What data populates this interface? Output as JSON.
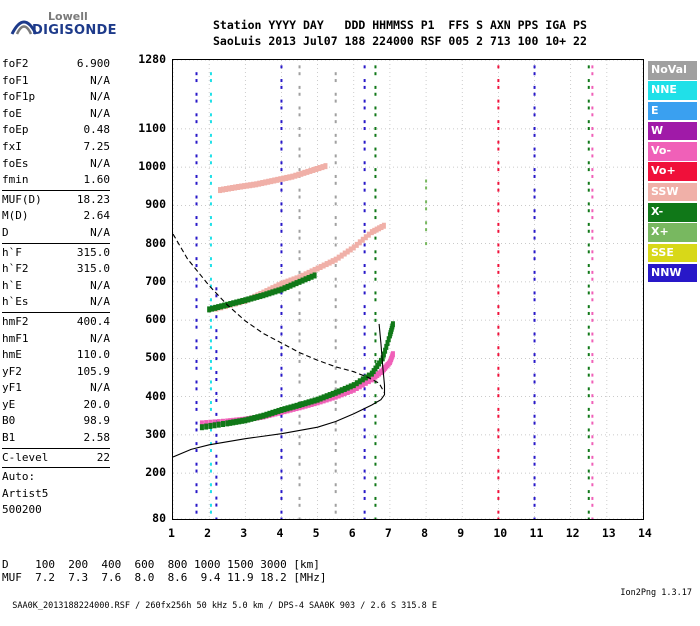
{
  "logo": {
    "line1": "Lowell",
    "line2": "DIGISONDE",
    "icon": "lowell-digisonde-logo-icon"
  },
  "header": {
    "line1": "Station YYYY DAY   DDD HHMMSS P1  FFS S AXN PPS IGA PS",
    "line2": "SaoLuis 2013 Jul07 188 224000 RSF 005 2 713 100 10+ 22"
  },
  "params": {
    "group1": [
      {
        "label": "foF2",
        "value": "6.900"
      },
      {
        "label": "foF1",
        "value": "N/A"
      },
      {
        "label": "foF1p",
        "value": "N/A"
      },
      {
        "label": "foE",
        "value": "N/A"
      },
      {
        "label": "foEp",
        "value": "0.48"
      },
      {
        "label": "fxI",
        "value": "7.25"
      },
      {
        "label": "foEs",
        "value": "N/A"
      },
      {
        "label": "fmin",
        "value": "1.60"
      }
    ],
    "group2": [
      {
        "label": "MUF(D)",
        "value": "18.23"
      },
      {
        "label": "M(D)",
        "value": "2.64"
      },
      {
        "label": "D",
        "value": "N/A"
      }
    ],
    "group3": [
      {
        "label": "h`F",
        "value": "315.0"
      },
      {
        "label": "h`F2",
        "value": "315.0"
      },
      {
        "label": "h`E",
        "value": "N/A"
      },
      {
        "label": "h`Es",
        "value": "N/A"
      }
    ],
    "group4": [
      {
        "label": "hmF2",
        "value": "400.4"
      },
      {
        "label": "hmF1",
        "value": "N/A"
      },
      {
        "label": "hmE",
        "value": "110.0"
      },
      {
        "label": "yF2",
        "value": "105.9"
      },
      {
        "label": "yF1",
        "value": "N/A"
      },
      {
        "label": "yE",
        "value": "20.0"
      },
      {
        "label": "B0",
        "value": "98.9"
      },
      {
        "label": "B1",
        "value": "2.58"
      }
    ],
    "group5": [
      {
        "label": "C-level",
        "value": "22"
      }
    ],
    "auto_lines": [
      "Auto:",
      "Artist5",
      "500200"
    ]
  },
  "legend": [
    {
      "label": "NoVal",
      "color": "#a0a0a0"
    },
    {
      "label": "NNE",
      "color": "#20e0e8"
    },
    {
      "label": "E",
      "color": "#3aa0f0"
    },
    {
      "label": "W",
      "color": "#a01aa8"
    },
    {
      "label": "Vo-",
      "color": "#f060b8"
    },
    {
      "label": "Vo+",
      "color": "#f0103a"
    },
    {
      "label": "SSW",
      "color": "#f0b0a8"
    },
    {
      "label": "X-",
      "color": "#107818"
    },
    {
      "label": "X+",
      "color": "#78b860"
    },
    {
      "label": "SSE",
      "color": "#d8d818"
    },
    {
      "label": "NNW",
      "color": "#2818c8"
    }
  ],
  "chart_data": {
    "type": "scatter",
    "title": "",
    "xlabel": "",
    "ylabel": "",
    "xlim": [
      1,
      14
    ],
    "ylim": [
      80,
      1280
    ],
    "x_ticks": [
      "1",
      "2",
      "3",
      "4",
      "5",
      "6",
      "7",
      "8",
      "9",
      "10",
      "11",
      "12",
      "13",
      "14"
    ],
    "y_ticks": [
      "80",
      "200",
      "300",
      "400",
      "500",
      "600",
      "700",
      "800",
      "900",
      "1000",
      "1100",
      "1280"
    ],
    "y_tick_values": [
      80,
      200,
      300,
      400,
      500,
      600,
      700,
      800,
      900,
      1000,
      1100,
      1280
    ],
    "grid": true,
    "series": [
      {
        "type": "trace",
        "color": "#f060b8",
        "points": [
          [
            1.8,
            330
          ],
          [
            2.5,
            335
          ],
          [
            3.0,
            340
          ],
          [
            3.5,
            348
          ],
          [
            4.0,
            360
          ],
          [
            4.5,
            372
          ],
          [
            5.0,
            385
          ],
          [
            5.5,
            400
          ],
          [
            6.0,
            418
          ],
          [
            6.5,
            445
          ],
          [
            6.8,
            468
          ],
          [
            7.0,
            490
          ],
          [
            7.1,
            515
          ]
        ]
      },
      {
        "type": "trace",
        "color": "#107818",
        "points": [
          [
            1.8,
            320
          ],
          [
            2.5,
            330
          ],
          [
            3.0,
            338
          ],
          [
            3.5,
            350
          ],
          [
            4.0,
            365
          ],
          [
            4.5,
            378
          ],
          [
            5.0,
            392
          ],
          [
            5.5,
            410
          ],
          [
            6.0,
            430
          ],
          [
            6.5,
            460
          ],
          [
            6.8,
            500
          ],
          [
            7.0,
            560
          ],
          [
            7.1,
            595
          ]
        ]
      },
      {
        "type": "trace",
        "color": "#f0b0a8",
        "points": [
          [
            2.2,
            630
          ],
          [
            3.0,
            650
          ],
          [
            3.5,
            672
          ],
          [
            4.0,
            695
          ],
          [
            4.5,
            712
          ],
          [
            5.0,
            735
          ],
          [
            5.5,
            758
          ],
          [
            6.0,
            790
          ],
          [
            6.5,
            830
          ],
          [
            6.9,
            850
          ]
        ]
      },
      {
        "type": "trace",
        "color": "#107818",
        "points": [
          [
            2.0,
            628
          ],
          [
            2.5,
            640
          ],
          [
            3.0,
            652
          ],
          [
            3.5,
            665
          ],
          [
            4.0,
            680
          ],
          [
            4.5,
            700
          ],
          [
            5.0,
            720
          ]
        ]
      },
      {
        "type": "trace",
        "color": "#f0b0a8",
        "points": [
          [
            2.3,
            940
          ],
          [
            2.8,
            948
          ],
          [
            3.3,
            955
          ],
          [
            3.8,
            965
          ],
          [
            4.3,
            975
          ],
          [
            4.8,
            990
          ],
          [
            5.3,
            1005
          ]
        ]
      }
    ],
    "lines": [
      {
        "name": "profile",
        "style": "solid",
        "points": [
          [
            1,
            242
          ],
          [
            1.5,
            262
          ],
          [
            2,
            274
          ],
          [
            3,
            290
          ],
          [
            4,
            303
          ],
          [
            5,
            320
          ],
          [
            5.5,
            335
          ],
          [
            6,
            355
          ],
          [
            6.5,
            378
          ],
          [
            6.75,
            392
          ],
          [
            6.85,
            405
          ],
          [
            6.85,
            430
          ],
          [
            6.8,
            480
          ],
          [
            6.75,
            540
          ],
          [
            6.7,
            590
          ]
        ]
      },
      {
        "name": "muf",
        "style": "dashed",
        "points": [
          [
            1,
            825
          ],
          [
            1.4,
            760
          ],
          [
            2,
            690
          ],
          [
            2.5,
            640
          ],
          [
            3,
            598
          ],
          [
            3.5,
            565
          ],
          [
            4,
            540
          ],
          [
            4.5,
            515
          ],
          [
            5,
            495
          ],
          [
            5.5,
            478
          ],
          [
            6,
            465
          ],
          [
            6.4,
            450
          ],
          [
            6.7,
            435
          ],
          [
            6.85,
            410
          ]
        ]
      }
    ],
    "columns": [
      {
        "x": 1.65,
        "from": 80,
        "to": 1280,
        "color": "#2818c8"
      },
      {
        "x": 2.05,
        "from": 80,
        "to": 1280,
        "color": "#20e0e8"
      },
      {
        "x": 2.2,
        "from": 80,
        "to": 700,
        "color": "#2818c8"
      },
      {
        "x": 4.0,
        "from": 80,
        "to": 1280,
        "color": "#2818c8"
      },
      {
        "x": 4.5,
        "from": 80,
        "to": 1280,
        "color": "#a0a0a0"
      },
      {
        "x": 5.5,
        "from": 80,
        "to": 1280,
        "color": "#a0a0a0"
      },
      {
        "x": 6.3,
        "from": 80,
        "to": 1280,
        "color": "#2818c8"
      },
      {
        "x": 6.6,
        "from": 80,
        "to": 1280,
        "color": "#107818"
      },
      {
        "x": 8.0,
        "from": 800,
        "to": 1000,
        "color": "#78b860"
      },
      {
        "x": 10.0,
        "from": 80,
        "to": 1280,
        "color": "#f0103a"
      },
      {
        "x": 11.0,
        "from": 80,
        "to": 1280,
        "color": "#2818c8"
      },
      {
        "x": 12.5,
        "from": 80,
        "to": 1280,
        "color": "#107818"
      },
      {
        "x": 12.6,
        "from": 80,
        "to": 1280,
        "color": "#f060b8"
      }
    ]
  },
  "bottom": {
    "line1": "D    100  200  400  600  800 1000 1500 3000 [km]",
    "line2": "MUF  7.2  7.3  7.6  8.0  8.6  9.4 11.9 18.2 [MHz]"
  },
  "footer": {
    "left": "SAA0K_2013188224000.RSF / 260fx256h 50 kHz 5.0 km / DPS-4 SAA0K 903 / 2.6 S 315.8 E",
    "right": "Ion2Png 1.3.17"
  }
}
